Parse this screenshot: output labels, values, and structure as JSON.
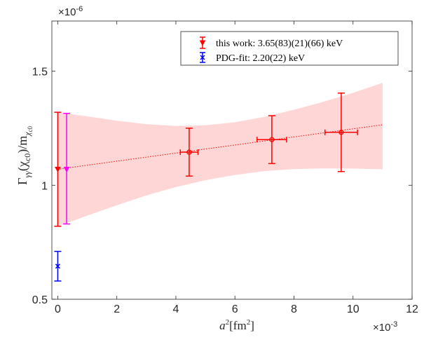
{
  "chart_data": {
    "type": "scatter",
    "xlabel_main": "a",
    "xlabel_sup": "2",
    "xlabel_unit": "[fm",
    "xlabel_unit_sup": "2",
    "xlabel_close": "]",
    "ylabel_main": "Γ",
    "ylabel_sub": "γγ",
    "ylabel_mid": "(χ",
    "ylabel_mid_sub": "c0",
    "ylabel_end": ")/m",
    "ylabel_end_sub": "χ",
    "ylabel_end_subsub": "c0",
    "x_multiplier": "×10",
    "x_multiplier_exp": "-3",
    "y_multiplier": "×10",
    "y_multiplier_exp": "-6",
    "xlim": [
      -0.2,
      12
    ],
    "ylim": [
      0.5,
      1.72
    ],
    "xticks": [
      0,
      2,
      4,
      6,
      8,
      10,
      12
    ],
    "xtick_labels": [
      "0",
      "2",
      "4",
      "6",
      "8",
      "10",
      "12"
    ],
    "yticks": [
      0.5,
      1.0,
      1.5
    ],
    "ytick_labels": [
      "0.5",
      "1",
      "1.5"
    ],
    "grid": false,
    "legend_position": "top-right",
    "legend": [
      {
        "label": "this work: 3.65(83)(21)(66) keV",
        "color": "#ff0000",
        "marker": "triangle-down"
      },
      {
        "label": "PDG-fit: 2.20(22) keV",
        "color": "#0000ff",
        "marker": "x"
      }
    ],
    "fit_band": {
      "color": "#ffd6d6",
      "x": [
        0,
        1,
        2,
        3,
        4,
        5,
        6,
        7,
        8,
        9,
        10,
        11
      ],
      "upper": [
        1.32,
        1.302,
        1.283,
        1.268,
        1.26,
        1.263,
        1.276,
        1.3,
        1.331,
        1.366,
        1.405,
        1.449
      ],
      "lower": [
        0.82,
        0.867,
        0.912,
        0.955,
        0.992,
        1.022,
        1.045,
        1.062,
        1.071,
        1.074,
        1.073,
        1.07
      ]
    },
    "fit_line": {
      "x": [
        0,
        11
      ],
      "y": [
        1.07,
        1.265
      ],
      "color": "#ff0000"
    },
    "data_points": [
      {
        "x": 4.45,
        "y": 1.145,
        "xerr": 0.3,
        "yerr": 0.105,
        "color": "#ff0000",
        "marker": "circle"
      },
      {
        "x": 7.25,
        "y": 1.2,
        "xerr": 0.5,
        "yerr": 0.105,
        "color": "#ff0000",
        "marker": "circle"
      },
      {
        "x": 9.6,
        "y": 1.232,
        "xerr": 0.55,
        "yerr": 0.172,
        "color": "#ff0000",
        "marker": "circle"
      }
    ],
    "extrapolations": [
      {
        "x": 0.0,
        "y": 1.07,
        "ylo": 0.82,
        "yhi": 1.32,
        "color": "#ff0000",
        "marker": "triangle-down"
      },
      {
        "x": 0.3,
        "y": 1.07,
        "ylo": 0.83,
        "yhi": 1.315,
        "color": "#ff00ff",
        "marker": "triangle-down"
      }
    ],
    "pdg_point": {
      "x": 0.0,
      "y": 0.645,
      "ylo": 0.58,
      "yhi": 0.71,
      "color": "#0000ff",
      "marker": "x"
    }
  }
}
